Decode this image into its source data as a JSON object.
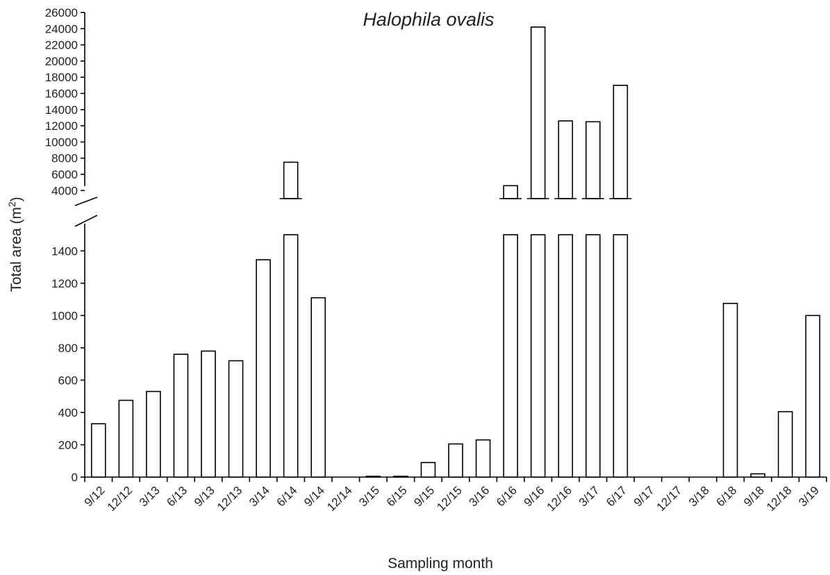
{
  "chart_data": {
    "type": "bar",
    "title": "Halophila ovalis",
    "xlabel": "Sampling month",
    "ylabel": "Total area (m",
    "ylabel_sup": "2",
    "ylabel_close": ")",
    "axis_break": true,
    "ylim_lower": [
      0,
      1500
    ],
    "ylim_upper": [
      3000,
      26000
    ],
    "yticks_lower": [
      0,
      200,
      400,
      600,
      800,
      1000,
      1200,
      1400
    ],
    "yticks_upper": [
      4000,
      6000,
      8000,
      10000,
      12000,
      14000,
      16000,
      18000,
      20000,
      22000,
      24000,
      26000
    ],
    "categories": [
      "9/12",
      "12/12",
      "3/13",
      "6/13",
      "9/13",
      "12/13",
      "3/14",
      "6/14",
      "9/14",
      "12/14",
      "3/15",
      "6/15",
      "9/15",
      "12/15",
      "3/16",
      "6/16",
      "9/16",
      "12/16",
      "3/17",
      "6/17",
      "9/17",
      "12/17",
      "3/18",
      "6/18",
      "9/18",
      "12/18",
      "3/19"
    ],
    "values": [
      330,
      475,
      530,
      760,
      780,
      720,
      1345,
      7500,
      1110,
      0,
      5,
      5,
      90,
      205,
      230,
      4600,
      24200,
      12600,
      12500,
      17000,
      0,
      0,
      0,
      1075,
      20,
      405,
      1000
    ],
    "grid": false,
    "legend": "none"
  }
}
